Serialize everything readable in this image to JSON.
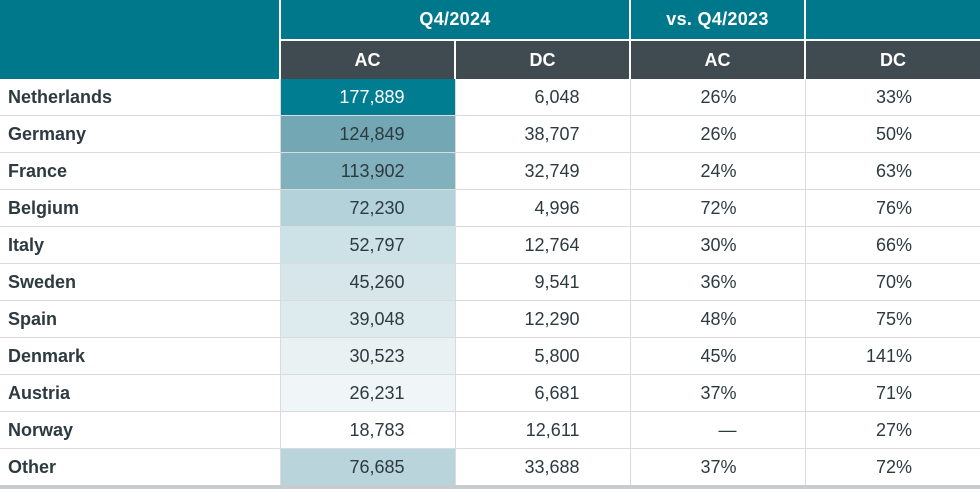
{
  "header": {
    "group_current": "Q4/2024",
    "group_compare": "vs. Q4/2023",
    "col_ac": "AC",
    "col_dc": "DC",
    "col_ac_change": "AC",
    "col_dc_change": "DC"
  },
  "colors": {
    "teal_header": "#00788c",
    "dark_subheader": "#3f4a51",
    "text": "#2d3a40"
  },
  "rows": [
    {
      "country": "Netherlands",
      "ac": "177,889",
      "dc": "6,048",
      "ac_change": "26%",
      "dc_change": "33%",
      "ac_shade": "#007d90",
      "ac_text_color": "#ffffff"
    },
    {
      "country": "Germany",
      "ac": "124,849",
      "dc": "38,707",
      "ac_change": "26%",
      "dc_change": "50%",
      "ac_shade": "#74a7b4",
      "ac_text_color": "#2d3a40"
    },
    {
      "country": "France",
      "ac": "113,902",
      "dc": "32,749",
      "ac_change": "24%",
      "dc_change": "63%",
      "ac_shade": "#80b1bd",
      "ac_text_color": "#2d3a40"
    },
    {
      "country": "Belgium",
      "ac": "72,230",
      "dc": "4,996",
      "ac_change": "72%",
      "dc_change": "76%",
      "ac_shade": "#b4d2d9",
      "ac_text_color": "#2d3a40"
    },
    {
      "country": "Italy",
      "ac": "52,797",
      "dc": "12,764",
      "ac_change": "30%",
      "dc_change": "66%",
      "ac_shade": "#cde2e6",
      "ac_text_color": "#2d3a40"
    },
    {
      "country": "Sweden",
      "ac": "45,260",
      "dc": "9,541",
      "ac_change": "36%",
      "dc_change": "70%",
      "ac_shade": "#d6e6ea",
      "ac_text_color": "#2d3a40"
    },
    {
      "country": "Spain",
      "ac": "39,048",
      "dc": "12,290",
      "ac_change": "48%",
      "dc_change": "75%",
      "ac_shade": "#deebee",
      "ac_text_color": "#2d3a40"
    },
    {
      "country": "Denmark",
      "ac": "30,523",
      "dc": "5,800",
      "ac_change": "45%",
      "dc_change": "141%",
      "ac_shade": "#e9f1f3",
      "ac_text_color": "#2d3a40"
    },
    {
      "country": "Austria",
      "ac": "26,231",
      "dc": "6,681",
      "ac_change": "37%",
      "dc_change": "71%",
      "ac_shade": "#f0f5f7",
      "ac_text_color": "#2d3a40"
    },
    {
      "country": "Norway",
      "ac": "18,783",
      "dc": "12,611",
      "ac_change": "—",
      "dc_change": "27%",
      "ac_shade": "#ffffff",
      "ac_text_color": "#2d3a40"
    },
    {
      "country": "Other",
      "ac": "76,685",
      "dc": "33,688",
      "ac_change": "37%",
      "dc_change": "72%",
      "ac_shade": "#b9d4db",
      "ac_text_color": "#2d3a40"
    }
  ]
}
